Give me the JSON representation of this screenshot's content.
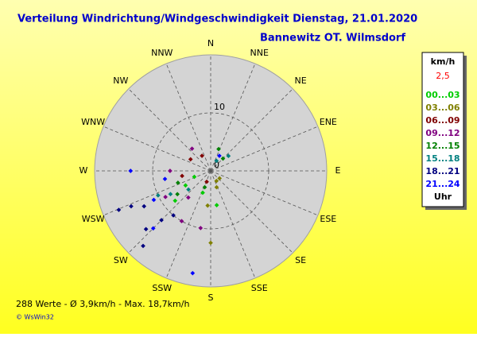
{
  "chart_data": {
    "type": "polar-scatter",
    "title": "Verteilung Windrichtung/Windgeschwindigkeit  Dienstag, 21.01.2020",
    "subtitle": "Bannewitz OT. Wilmsdorf",
    "directions": [
      "N",
      "NNE",
      "NE",
      "ENE",
      "E",
      "ESE",
      "SE",
      "SSE",
      "S",
      "SSW",
      "SW",
      "WSW",
      "W",
      "WNW",
      "NW",
      "NNW"
    ],
    "rlim": [
      0,
      20
    ],
    "rticks": [
      0,
      10
    ],
    "legend_title": "km/h",
    "legend_scale": "2,5",
    "legend_footer": "Uhr",
    "footer": "288 Werte  -  Ø 3,9km/h  -  Max. 18,7km/h",
    "credit": "© WsWin32",
    "series": [
      {
        "name": "00...03",
        "color": "#00cc00",
        "x": [
          250,
          240,
          200,
          170,
          230
        ],
        "values": [
          3,
          5,
          4,
          6,
          8
        ]
      },
      {
        "name": "03...06",
        "color": "#808000",
        "x": [
          160,
          150,
          180,
          130,
          185
        ],
        "values": [
          3,
          2,
          12.4,
          2,
          6
        ]
      },
      {
        "name": "06...09",
        "color": "#800000",
        "x": [
          300,
          260,
          330,
          200
        ],
        "values": [
          4,
          5,
          3,
          2
        ]
      },
      {
        "name": "09...12",
        "color": "#800080",
        "x": [
          320,
          270,
          240,
          220,
          190,
          210
        ],
        "values": [
          5,
          7,
          9,
          6,
          10,
          10
        ]
      },
      {
        "name": "12...15",
        "color": "#008000",
        "x": [
          235,
          250,
          200,
          45,
          20
        ],
        "values": [
          7,
          6,
          3,
          3,
          4
        ]
      },
      {
        "name": "15...18",
        "color": "#008080",
        "x": [
          240,
          245,
          230,
          30,
          50
        ],
        "values": [
          8,
          10,
          5,
          2,
          4
        ]
      },
      {
        "name": "18...21",
        "color": "#000080",
        "x": [
          225,
          228,
          242,
          246,
          222,
          247,
          220
        ],
        "values": [
          12,
          15,
          13,
          15,
          17.4,
          17.2,
          10
        ]
      },
      {
        "name": "21...24",
        "color": "#0000ff",
        "x": [
          270,
          190,
          225,
          243,
          260,
          30
        ],
        "values": [
          13.8,
          17.9,
          14,
          11,
          8,
          3
        ]
      }
    ]
  }
}
